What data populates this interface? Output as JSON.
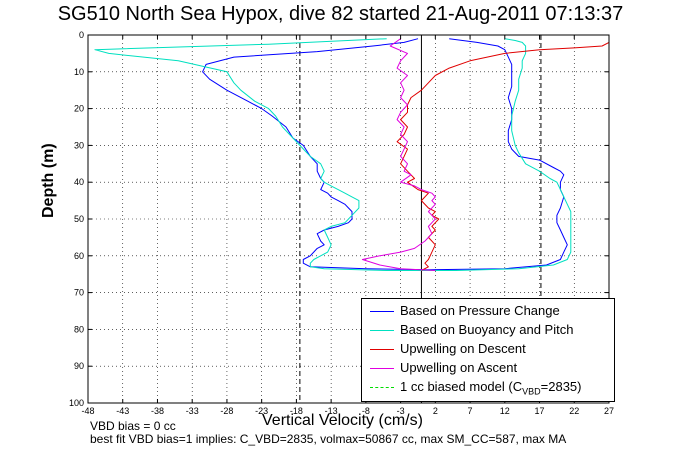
{
  "title": "SG510 North Sea Hypox, dive 82 started 21-Aug-2011 07:13:37",
  "annotations": {
    "line1": "VBD bias = 0 cc",
    "line2": "best fit VBD bias=1 implies: C_VBD=2835, volmax=50867 cc, max SM_CC=587, max MA"
  },
  "chart_data": {
    "type": "line",
    "title": "SG510 North Sea Hypox, dive 82 started 21-Aug-2011 07:13:37",
    "xlabel": "Vertical Velocity (cm/s)",
    "ylabel": "Depth (m)",
    "xlim": [
      -48,
      27
    ],
    "ylim": [
      100,
      0
    ],
    "y_reversed": true,
    "xticks": [
      -48,
      -43,
      -38,
      -33,
      -28,
      -23,
      -18,
      -13,
      -8,
      -3,
      2,
      7,
      12,
      17,
      22,
      27
    ],
    "yticks": [
      0,
      10,
      20,
      30,
      40,
      50,
      60,
      70,
      80,
      90,
      100
    ],
    "grid": true,
    "legend_position": "bottom-right",
    "reference_lines": {
      "vertical_solid": [
        0
      ],
      "vertical_dashed": [
        -17.5,
        17.2
      ]
    },
    "series": [
      {
        "name": "Based on Pressure Change",
        "color": "#0000ff",
        "x": [
          -0.5,
          -2.5,
          -7,
          -15,
          -27,
          -31,
          -31.5,
          -30.5,
          -28,
          -25,
          -23,
          -21.5,
          -19.5,
          -18.5,
          -17,
          -16,
          -15,
          -15,
          -14.5,
          -14,
          -14.5,
          -13.5,
          -13,
          -12,
          -11,
          -10.5,
          -10,
          -10,
          -10.5,
          -12,
          -14,
          -15,
          -14.5,
          -14,
          -15,
          -16,
          -17,
          -17,
          -16,
          -8,
          1,
          12,
          18,
          20,
          20.5,
          21,
          20.5,
          20,
          19.5,
          19.5,
          20,
          20.5,
          20,
          20,
          20.5,
          20,
          19,
          17,
          14,
          13,
          12.5,
          12.5,
          13,
          13,
          12.5,
          13,
          13,
          13,
          12.5,
          12,
          11,
          8,
          4
        ],
        "y": [
          1,
          2,
          3,
          4.5,
          6,
          8,
          10,
          12,
          15,
          18,
          20,
          22,
          25,
          28,
          30,
          33,
          35,
          37,
          39,
          40,
          42,
          43,
          44,
          45,
          46,
          47,
          48,
          50,
          51,
          52,
          53,
          54,
          56,
          57,
          58,
          60,
          61,
          62,
          63,
          63.5,
          63.8,
          63.5,
          62.5,
          61,
          59,
          57,
          55,
          53,
          51,
          49,
          47,
          44,
          42,
          40,
          38,
          37,
          36,
          34,
          33,
          31,
          29,
          26,
          23,
          20,
          17,
          14,
          11,
          8,
          6,
          4,
          3,
          2,
          1
        ]
      },
      {
        "name": "Based on Buoyancy and Pitch",
        "color": "#00e0c0",
        "x": [
          -5,
          -22,
          -47,
          -45,
          -35,
          -28,
          -27,
          -26,
          -24,
          -22,
          -21,
          -20,
          -18.5,
          -17.5,
          -16,
          -14.5,
          -14,
          -14.5,
          -14,
          -13,
          -12,
          -11,
          -10,
          -9,
          -9,
          -10,
          -11,
          -13,
          -14,
          -13.5,
          -13,
          -13.5,
          -14.5,
          -15.5,
          -16,
          -16,
          -14,
          -5,
          5,
          14,
          19,
          21,
          21.5,
          21.5,
          21.5,
          21.5,
          21.5,
          21,
          20.5,
          20,
          19.5,
          18.5,
          17,
          15,
          14,
          13.5,
          13,
          13,
          13.5,
          14,
          14,
          14.5,
          14.5,
          15,
          15,
          14.5,
          13.5,
          12
        ],
        "y": [
          1,
          2.5,
          4,
          5,
          7,
          10,
          13,
          15,
          18,
          20,
          22,
          25,
          28,
          30,
          33,
          35,
          37,
          39,
          40,
          41,
          42,
          43,
          44,
          45,
          47,
          49,
          51,
          52,
          53,
          55,
          57,
          59,
          60,
          61,
          62,
          63,
          63.5,
          64,
          64,
          63.5,
          62.5,
          61,
          59,
          57,
          54,
          51,
          48,
          46,
          44,
          42,
          40,
          39,
          37,
          35,
          32,
          30,
          26,
          22,
          18,
          15,
          12,
          9,
          7,
          5,
          3,
          2,
          1.5,
          1
        ]
      },
      {
        "name": "Upwelling on Descent",
        "color": "#e00000",
        "x": [
          27,
          26,
          22,
          17,
          12,
          7,
          4,
          2,
          1,
          0,
          -1.5,
          -2,
          -2,
          -3,
          -2,
          -2.5,
          -3.5,
          -2,
          -2.5,
          -3,
          -2,
          -1.5,
          -1,
          -2,
          -0.5,
          1,
          0,
          1,
          2,
          1.5,
          2.5,
          2,
          1.5,
          2,
          1,
          1.5,
          2,
          1.5,
          1,
          0.5,
          1,
          0
        ],
        "y": [
          2,
          3,
          3.5,
          4,
          5,
          7,
          9,
          11,
          13,
          15,
          17,
          19,
          21,
          23,
          25,
          27,
          29,
          31,
          33,
          35,
          37,
          38,
          39,
          40,
          42,
          43,
          45,
          47,
          48,
          49,
          50,
          51,
          52,
          53,
          55,
          56,
          57,
          59,
          61,
          62,
          63,
          64
        ]
      },
      {
        "name": "Upwelling on Ascent",
        "color": "#e000e0",
        "x": [
          -3,
          -4.5,
          -2,
          -3,
          -3.5,
          -2,
          -3,
          -2.5,
          -3,
          -2,
          -3,
          -3.5,
          -2.5,
          -3,
          -2,
          -2.5,
          -3,
          -2,
          -2.5,
          -1.5,
          -3,
          -1,
          0,
          1.5,
          2,
          1.5,
          2,
          1,
          1.5,
          2,
          1.5,
          1,
          1.5,
          0.5,
          -1,
          -3,
          -6,
          -8.5,
          -6,
          -3,
          2
        ],
        "y": [
          1,
          3,
          5,
          7,
          9,
          11,
          13,
          15,
          17,
          19,
          21,
          23,
          25,
          27,
          29,
          31,
          33,
          35,
          37,
          38,
          40,
          41,
          42,
          43,
          44,
          45,
          46,
          48,
          49,
          50,
          51,
          52,
          54,
          56,
          58,
          59,
          60,
          61,
          62.5,
          63.5,
          64
        ]
      },
      {
        "name": "1 cc biased model",
        "color": "#00dd00",
        "dashed": true,
        "x": [],
        "y": []
      }
    ]
  },
  "legend": {
    "items": [
      {
        "label": "Based on Pressure Change",
        "color": "#0000ff",
        "style": "solid"
      },
      {
        "label": "Based on Buoyancy and Pitch",
        "color": "#00e0c0",
        "style": "solid"
      },
      {
        "label": "Upwelling on Descent",
        "color": "#e00000",
        "style": "solid"
      },
      {
        "label": "Upwelling on Ascent",
        "color": "#e000e0",
        "style": "solid"
      }
    ],
    "model": {
      "prefix": "1 cc biased model (C",
      "sub": "VBD",
      "suffix": "=2835)",
      "color": "#00dd00",
      "style": "dashed"
    }
  }
}
